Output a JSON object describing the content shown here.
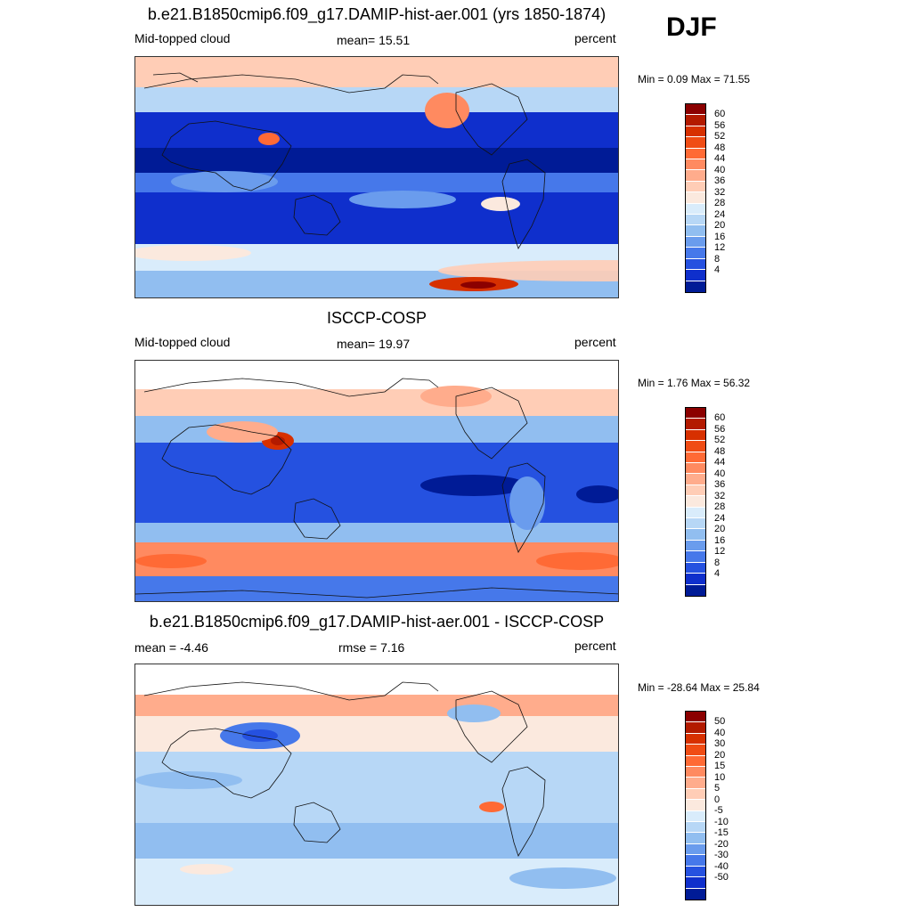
{
  "season": "DJF",
  "panels": [
    {
      "title": "b.e21.B1850cmip6.f09_g17.DAMIP-hist-aer.001 (yrs 1850-1874)",
      "left_label": "Mid-topped cloud",
      "center_label": "mean=  15.51",
      "right_label": "percent",
      "minmax": "Min =   0.09 Max =  71.55",
      "colorbar": {
        "labels": [
          "60",
          "56",
          "52",
          "48",
          "44",
          "40",
          "36",
          "32",
          "28",
          "24",
          "20",
          "16",
          "12",
          "8",
          "4"
        ],
        "colors": [
          "#8b0000",
          "#b31a00",
          "#d73000",
          "#f04c14",
          "#ff6a35",
          "#ff8a60",
          "#ffac8c",
          "#ffcdb6",
          "#fbe9de",
          "#d9ecfb",
          "#b7d7f6",
          "#91bef0",
          "#6a9ced",
          "#4678ea",
          "#2551e0",
          "#0f2fcc",
          "#001b96"
        ]
      }
    },
    {
      "title": "ISCCP-COSP",
      "left_label": "Mid-topped cloud",
      "center_label": "mean=  19.97",
      "right_label": "percent",
      "minmax": "Min =   1.76 Max =  56.32",
      "colorbar": {
        "labels": [
          "60",
          "56",
          "52",
          "48",
          "44",
          "40",
          "36",
          "32",
          "28",
          "24",
          "20",
          "16",
          "12",
          "8",
          "4"
        ],
        "colors": [
          "#8b0000",
          "#b31a00",
          "#d73000",
          "#f04c14",
          "#ff6a35",
          "#ff8a60",
          "#ffac8c",
          "#ffcdb6",
          "#fbe9de",
          "#d9ecfb",
          "#b7d7f6",
          "#91bef0",
          "#6a9ced",
          "#4678ea",
          "#2551e0",
          "#0f2fcc",
          "#001b96"
        ]
      }
    },
    {
      "title": "b.e21.B1850cmip6.f09_g17.DAMIP-hist-aer.001 - ISCCP-COSP",
      "left_label": "mean =  -4.46",
      "center_label": "rmse =   7.16",
      "right_label": "percent",
      "minmax": "Min = -28.64 Max =  25.84",
      "colorbar": {
        "labels": [
          "50",
          "40",
          "30",
          "20",
          "15",
          "10",
          "5",
          "0",
          "-5",
          "-10",
          "-15",
          "-20",
          "-30",
          "-40",
          "-50"
        ],
        "colors": [
          "#8b0000",
          "#b31a00",
          "#d73000",
          "#f04c14",
          "#ff6a35",
          "#ff8a60",
          "#ffac8c",
          "#ffcdb6",
          "#fbe9de",
          "#d9ecfb",
          "#b7d7f6",
          "#91bef0",
          "#6a9ced",
          "#4678ea",
          "#2551e0",
          "#0f2fcc",
          "#001b96"
        ]
      }
    }
  ]
}
